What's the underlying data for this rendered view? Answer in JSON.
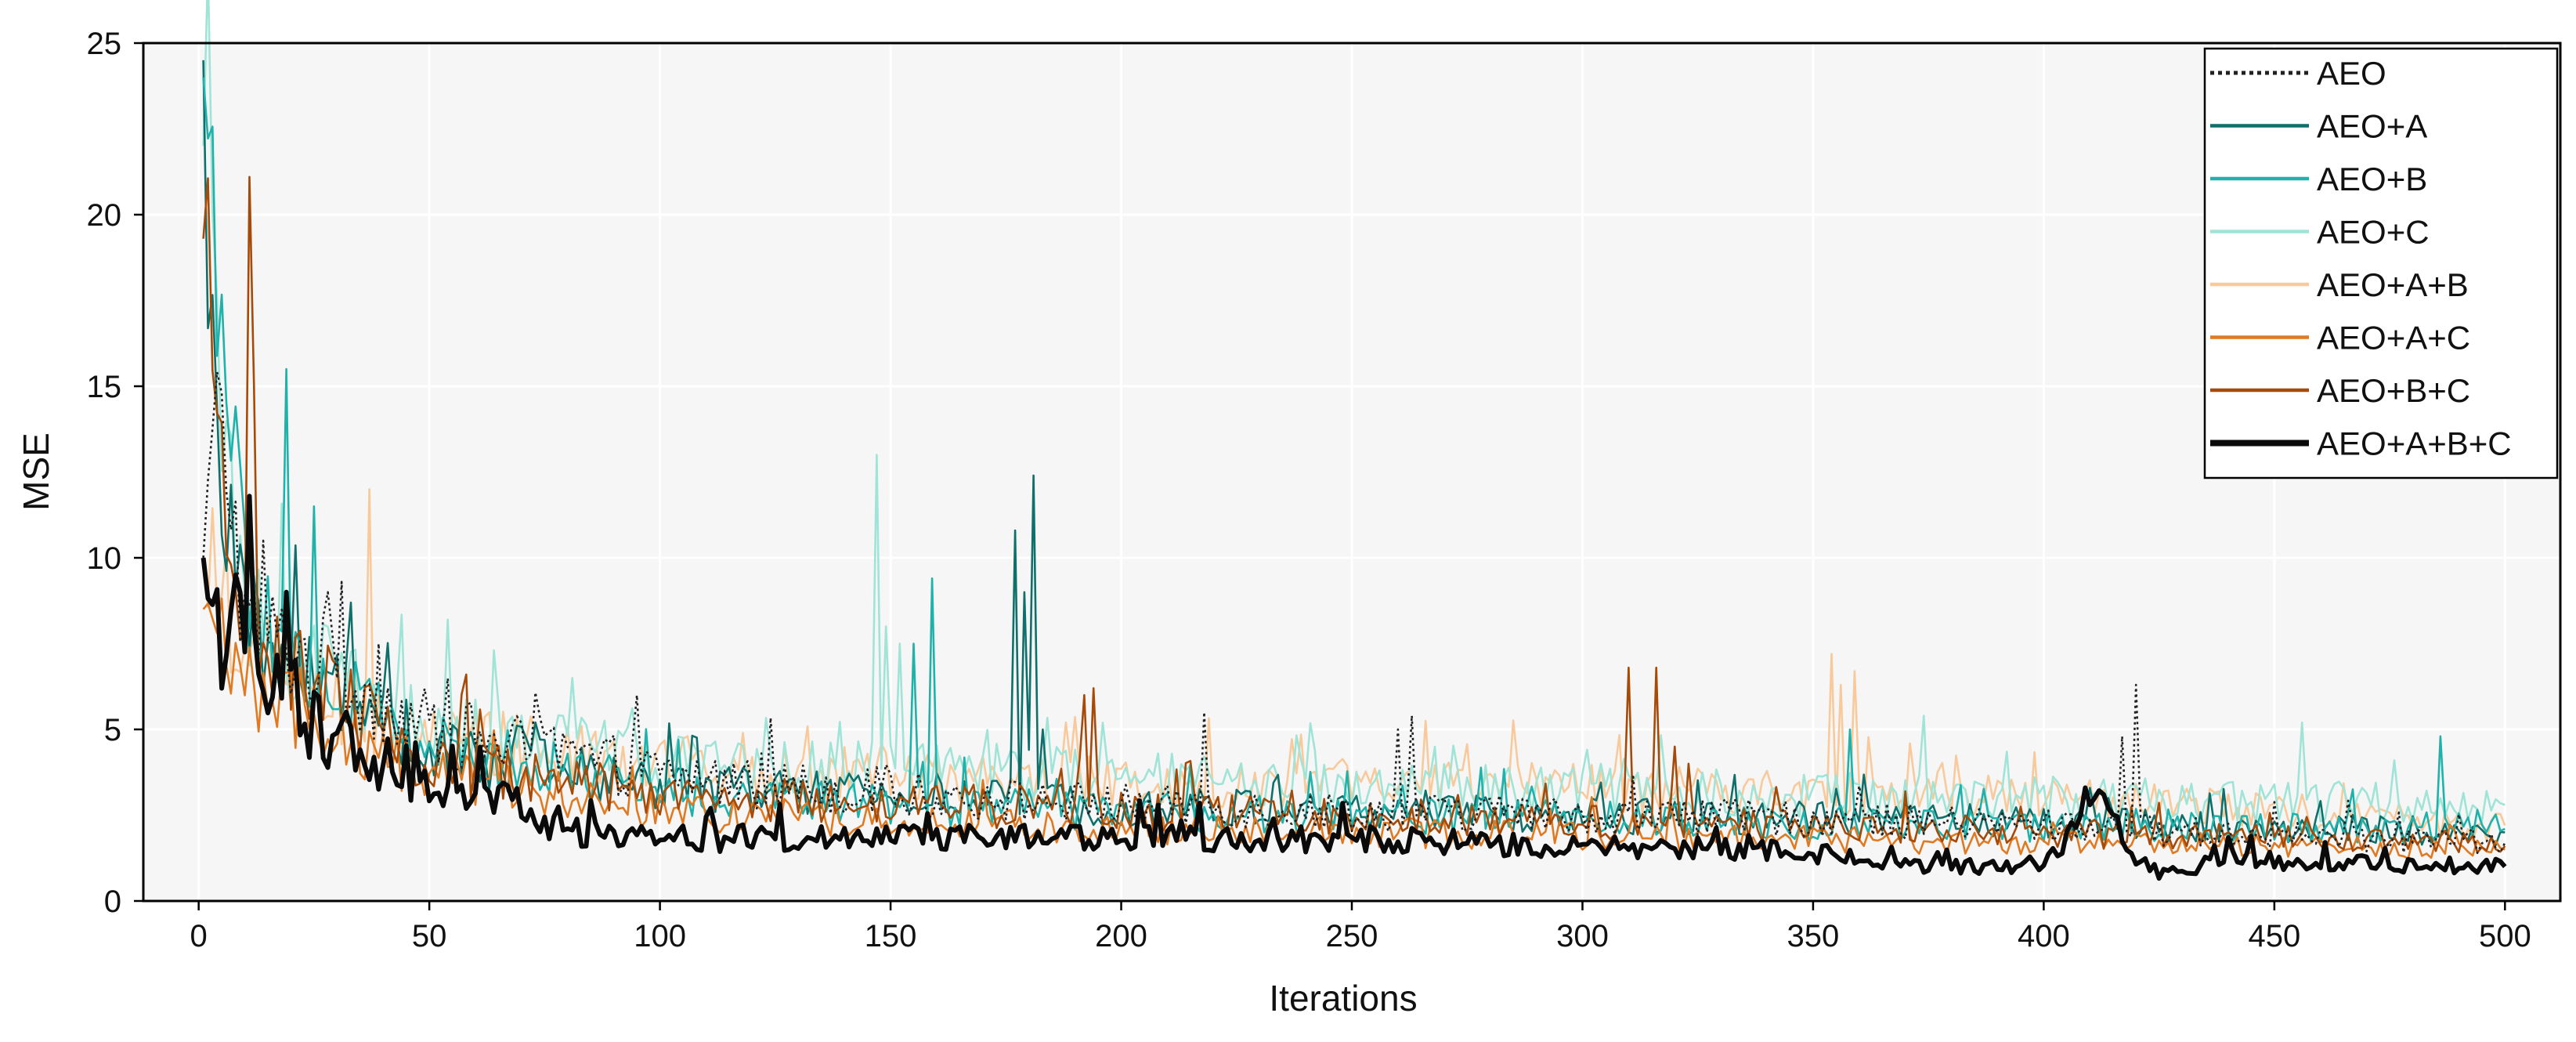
{
  "chart_data": {
    "type": "line",
    "title": "",
    "xlabel": "Iterations",
    "ylabel": "MSE",
    "xlim": [
      -12,
      512
    ],
    "ylim": [
      0,
      25
    ],
    "xticks": [
      0,
      50,
      100,
      150,
      200,
      250,
      300,
      350,
      400,
      450,
      500
    ],
    "xtick_labels": [
      "0",
      "50",
      "100",
      "150",
      "200",
      "250",
      "300",
      "350",
      "400",
      "450",
      "500"
    ],
    "yticks": [
      0,
      5,
      10,
      15,
      20,
      25
    ],
    "ytick_labels": [
      "0",
      "5",
      "10",
      "15",
      "20",
      "25"
    ],
    "grid": true,
    "legend_position": "top-right",
    "x_range": [
      1,
      500
    ],
    "series": [
      {
        "name": "AEO",
        "color": "#222222",
        "dash": "dotted",
        "start": 10.0,
        "end": 1.7,
        "anchors": [
          [
            1,
            10.0
          ],
          [
            5,
            14.8
          ],
          [
            10,
            8.0
          ],
          [
            25,
            7.0
          ],
          [
            50,
            5.0
          ],
          [
            100,
            3.7
          ],
          [
            150,
            3.1
          ],
          [
            200,
            2.8
          ],
          [
            250,
            2.6
          ],
          [
            300,
            2.5
          ],
          [
            350,
            2.4
          ],
          [
            400,
            2.2
          ],
          [
            450,
            1.9
          ],
          [
            500,
            1.7
          ]
        ],
        "spikes": [
          [
            5,
            14.8
          ],
          [
            14,
            10.5
          ],
          [
            28,
            9.0
          ],
          [
            31,
            9.3
          ],
          [
            39,
            7.5
          ],
          [
            218,
            5.5
          ],
          [
            260,
            5.0
          ],
          [
            263,
            5.4
          ],
          [
            417,
            4.8
          ],
          [
            420,
            6.3
          ]
        ]
      },
      {
        "name": "AEO+A",
        "color": "#0f6f6a",
        "dash": "solid",
        "start": 24.5,
        "end": 2.0,
        "anchors": [
          [
            1,
            24.5
          ],
          [
            4,
            12.0
          ],
          [
            10,
            8.0
          ],
          [
            25,
            6.5
          ],
          [
            50,
            4.3
          ],
          [
            100,
            3.4
          ],
          [
            150,
            3.0
          ],
          [
            200,
            2.8
          ],
          [
            250,
            2.6
          ],
          [
            300,
            2.5
          ],
          [
            350,
            2.4
          ],
          [
            400,
            2.3
          ],
          [
            450,
            2.1
          ],
          [
            500,
            2.0
          ]
        ],
        "spikes": [
          [
            177,
            10.8
          ],
          [
            179,
            9.0
          ],
          [
            181,
            12.4
          ],
          [
            183,
            5.0
          ],
          [
            410,
            3.3
          ],
          [
            414,
            3.0
          ]
        ]
      },
      {
        "name": "AEO+B",
        "color": "#1fb2aa",
        "dash": "solid",
        "start": 24.0,
        "end": 2.1,
        "anchors": [
          [
            1,
            24.0
          ],
          [
            4,
            19.5
          ],
          [
            10,
            9.0
          ],
          [
            25,
            6.5
          ],
          [
            50,
            4.5
          ],
          [
            100,
            3.2
          ],
          [
            150,
            2.8
          ],
          [
            200,
            2.6
          ],
          [
            250,
            2.5
          ],
          [
            300,
            2.4
          ],
          [
            350,
            2.3
          ],
          [
            400,
            2.2
          ],
          [
            450,
            2.2
          ],
          [
            500,
            2.1
          ]
        ],
        "spikes": [
          [
            19,
            15.5
          ],
          [
            25,
            11.5
          ],
          [
            159,
            9.4
          ],
          [
            155,
            7.5
          ],
          [
            358,
            5.0
          ],
          [
            486,
            4.8
          ]
        ]
      },
      {
        "name": "AEO+C",
        "color": "#9fe4d6",
        "dash": "solid",
        "start": 22.0,
        "end": 2.8,
        "anchors": [
          [
            1,
            22.0
          ],
          [
            5,
            13.0
          ],
          [
            10,
            8.5
          ],
          [
            25,
            6.8
          ],
          [
            50,
            5.0
          ],
          [
            100,
            4.1
          ],
          [
            150,
            3.9
          ],
          [
            200,
            3.6
          ],
          [
            250,
            3.4
          ],
          [
            300,
            3.2
          ],
          [
            350,
            3.1
          ],
          [
            400,
            3.0
          ],
          [
            450,
            2.9
          ],
          [
            500,
            2.8
          ]
        ],
        "spikes": [
          [
            54,
            8.2
          ],
          [
            147,
            13.0
          ],
          [
            149,
            8.0
          ],
          [
            152,
            7.5
          ],
          [
            374,
            5.4
          ],
          [
            456,
            5.2
          ]
        ]
      },
      {
        "name": "AEO+A+B",
        "color": "#f8c99b",
        "dash": "solid",
        "start": 10.0,
        "end": 2.2,
        "anchors": [
          [
            1,
            10.0
          ],
          [
            10,
            7.5
          ],
          [
            25,
            6.0
          ],
          [
            50,
            4.8
          ],
          [
            100,
            4.0
          ],
          [
            150,
            3.7
          ],
          [
            200,
            3.5
          ],
          [
            250,
            3.4
          ],
          [
            300,
            3.3
          ],
          [
            350,
            3.2
          ],
          [
            400,
            3.0
          ],
          [
            450,
            2.6
          ],
          [
            500,
            2.2
          ]
        ],
        "spikes": [
          [
            37,
            12.0
          ],
          [
            188,
            5.2
          ],
          [
            354,
            7.2
          ],
          [
            356,
            6.3
          ],
          [
            359,
            6.7
          ]
        ]
      },
      {
        "name": "AEO+A+C",
        "color": "#e07a22",
        "dash": "solid",
        "start": 8.5,
        "end": 1.5,
        "anchors": [
          [
            1,
            8.5
          ],
          [
            10,
            6.5
          ],
          [
            25,
            5.0
          ],
          [
            50,
            3.8
          ],
          [
            100,
            2.6
          ],
          [
            150,
            2.3
          ],
          [
            200,
            2.1
          ],
          [
            250,
            2.0
          ],
          [
            300,
            1.9
          ],
          [
            350,
            1.8
          ],
          [
            400,
            1.7
          ],
          [
            450,
            1.6
          ],
          [
            500,
            1.5
          ]
        ],
        "spikes": [
          [
            22,
            6.8
          ]
        ]
      },
      {
        "name": "AEO+B+C",
        "color": "#a54a08",
        "dash": "solid",
        "start": 19.3,
        "end": 1.6,
        "anchors": [
          [
            1,
            19.3
          ],
          [
            5,
            11.5
          ],
          [
            10,
            8.0
          ],
          [
            25,
            6.5
          ],
          [
            50,
            4.0
          ],
          [
            100,
            3.1
          ],
          [
            150,
            2.8
          ],
          [
            200,
            2.6
          ],
          [
            250,
            2.5
          ],
          [
            300,
            2.3
          ],
          [
            350,
            2.2
          ],
          [
            400,
            2.0
          ],
          [
            450,
            1.8
          ],
          [
            500,
            1.6
          ]
        ],
        "spikes": [
          [
            11,
            21.1
          ],
          [
            12,
            15.0
          ],
          [
            58,
            6.6
          ],
          [
            192,
            6.0
          ],
          [
            194,
            6.2
          ],
          [
            310,
            6.8
          ],
          [
            316,
            6.8
          ],
          [
            320,
            4.5
          ],
          [
            323,
            4.0
          ]
        ]
      },
      {
        "name": "AEO+A+B+C",
        "color": "#0a0a0a",
        "dash": "solid",
        "width": "bold",
        "start": 10.0,
        "end": 1.0,
        "anchors": [
          [
            1,
            10.0
          ],
          [
            5,
            7.5
          ],
          [
            10,
            8.0
          ],
          [
            25,
            5.0
          ],
          [
            50,
            3.4
          ],
          [
            70,
            2.7
          ],
          [
            75,
            2.1
          ],
          [
            100,
            1.8
          ],
          [
            150,
            1.9
          ],
          [
            200,
            1.9
          ],
          [
            250,
            1.8
          ],
          [
            300,
            1.6
          ],
          [
            350,
            1.4
          ],
          [
            375,
            1.0
          ],
          [
            400,
            1.0
          ],
          [
            405,
            1.8
          ],
          [
            410,
            3.2
          ],
          [
            420,
            1.3
          ],
          [
            425,
            0.8
          ],
          [
            440,
            1.2
          ],
          [
            500,
            1.0
          ]
        ],
        "spikes": [
          [
            8,
            9.5
          ],
          [
            19,
            9.0
          ],
          [
            409,
            3.3
          ],
          [
            413,
            3.1
          ]
        ]
      }
    ]
  }
}
